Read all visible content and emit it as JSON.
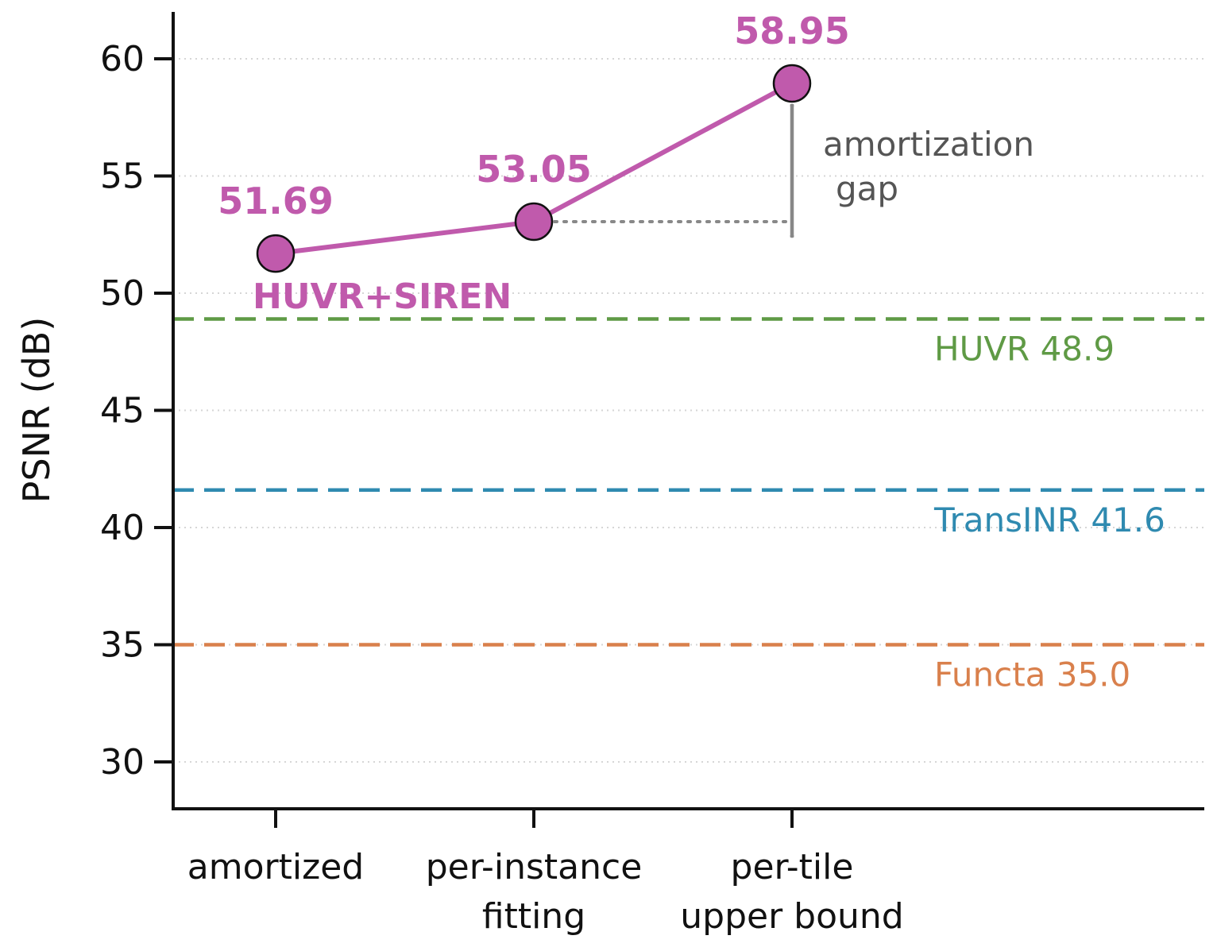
{
  "chart_data": {
    "type": "line",
    "ylabel": "PSNR (dB)",
    "ylim": [
      28,
      62
    ],
    "yticks": [
      30,
      35,
      40,
      45,
      50,
      55,
      60
    ],
    "grid": "y-dotted",
    "categories": [
      [
        "amortized"
      ],
      [
        "per-instance",
        "fitting"
      ],
      [
        "per-tile",
        "upper bound"
      ]
    ],
    "series": [
      {
        "name": "HUVR+SIREN",
        "values": [
          51.69,
          53.05,
          58.95
        ],
        "value_labels": [
          "51.69",
          "53.05",
          "58.95"
        ],
        "color": "#c05aac"
      }
    ],
    "reference_lines": [
      {
        "label": "HUVR 48.9",
        "value": 48.9,
        "color": "#5f9a45"
      },
      {
        "label": "TransINR 41.6",
        "value": 41.6,
        "color": "#2f8ab0"
      },
      {
        "label": "Functa 35.0",
        "value": 35.0,
        "color": "#d9804c"
      }
    ],
    "annotation": {
      "lines": [
        "amortization",
        "gap"
      ],
      "from_category": 1,
      "to_category": 2
    }
  }
}
